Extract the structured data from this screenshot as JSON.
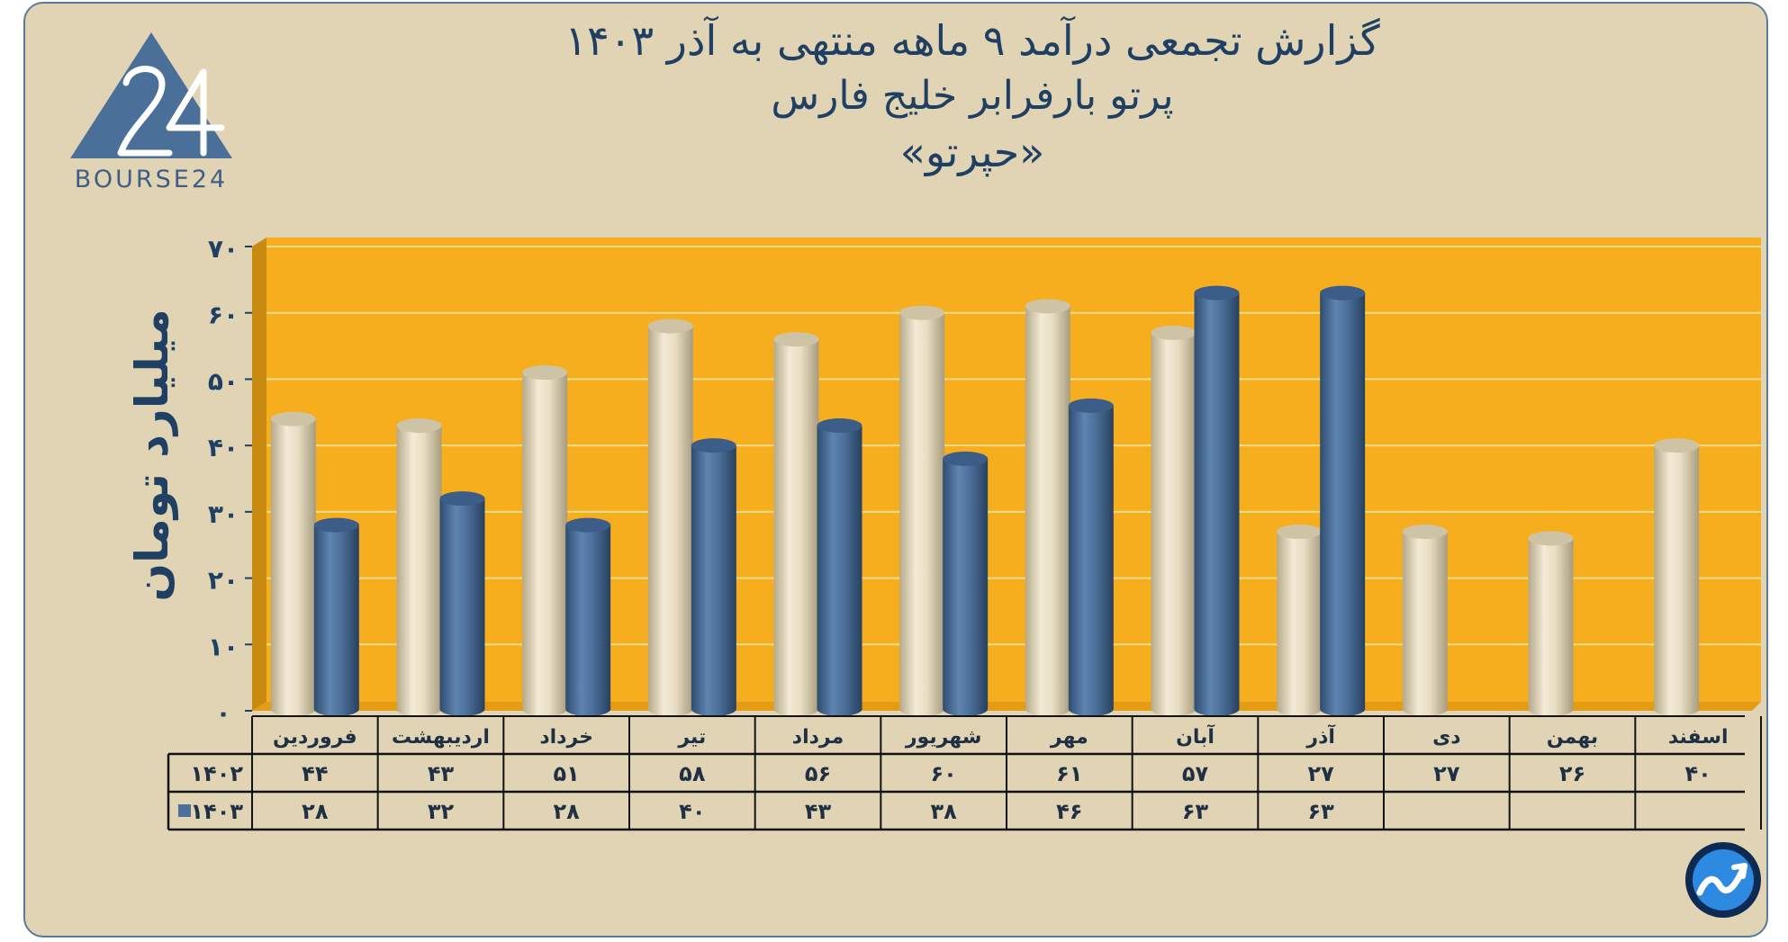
{
  "title": {
    "line1": "گزارش تجمعی درآمد ۹ ماهه منتهی به آذر ۱۴۰۳",
    "line2": "پرتو بارفرابر خلیج فارس",
    "line3": "«حپرتو»"
  },
  "logo": {
    "icon": "bourse24-logo-icon",
    "text": "BOURSE24"
  },
  "corner_icon": "trend-arrow-icon",
  "colors": {
    "background": "#e1d4b4",
    "plot": "#f6ae1e",
    "series_1402": "#e8dcc0",
    "series_1403": "#4d709b",
    "text": "#1f3f63"
  },
  "chart_data": {
    "type": "bar",
    "title": "گزارش تجمعی درآمد ۹ ماهه منتهی به آذر ۱۴۰۳",
    "ylabel": "میلیارد تومان",
    "ylim": [
      0,
      70
    ],
    "yticks": [
      0,
      10,
      20,
      30,
      40,
      50,
      60,
      70
    ],
    "ytick_labels": [
      "۰",
      "۱۰",
      "۲۰",
      "۳۰",
      "۴۰",
      "۵۰",
      "۶۰",
      "۷۰"
    ],
    "grid": true,
    "categories": [
      "فروردین",
      "اردیبهشت",
      "خرداد",
      "تیر",
      "مرداد",
      "شهریور",
      "مهر",
      "آبان",
      "آذر",
      "دی",
      "بهمن",
      "اسفند"
    ],
    "series": [
      {
        "name": "۱۴۰۲",
        "values": [
          44,
          43,
          51,
          58,
          56,
          60,
          61,
          57,
          27,
          27,
          26,
          40
        ],
        "labels": [
          "۴۴",
          "۴۳",
          "۵۱",
          "۵۸",
          "۵۶",
          "۶۰",
          "۶۱",
          "۵۷",
          "۲۷",
          "۲۷",
          "۲۶",
          "۴۰"
        ]
      },
      {
        "name": "۱۴۰۳",
        "values": [
          28,
          32,
          28,
          40,
          43,
          38,
          46,
          63,
          63,
          null,
          null,
          null
        ],
        "labels": [
          "۲۸",
          "۳۲",
          "۲۸",
          "۴۰",
          "۴۳",
          "۳۸",
          "۴۶",
          "۶۳",
          "۶۳",
          "",
          "",
          ""
        ]
      }
    ]
  }
}
